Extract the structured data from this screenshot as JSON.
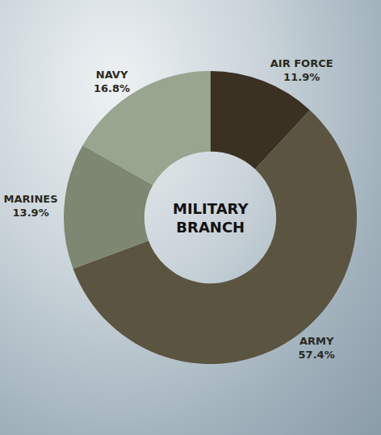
{
  "chart_data": {
    "type": "pie",
    "title": "MILITARY BRANCH",
    "categories": [
      "AIR FORCE",
      "ARMY",
      "MARINES",
      "NAVY"
    ],
    "values": [
      11.9,
      57.4,
      13.9,
      16.8
    ],
    "value_labels": [
      "11.9%",
      "57.4%",
      "13.9%",
      "16.8%"
    ],
    "colors": [
      "#3a3122",
      "#5b5441",
      "#7d8771",
      "#98a58f"
    ],
    "data_labels": true
  }
}
